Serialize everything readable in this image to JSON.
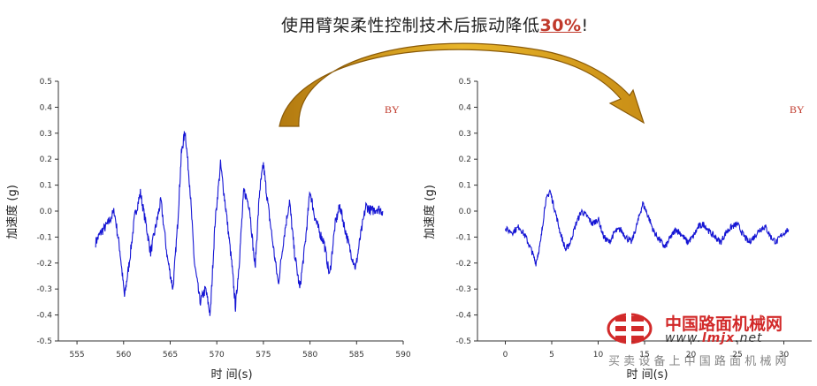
{
  "headline": {
    "text": "使用臂架柔性控制技术后振动降低",
    "percent": "30%",
    "tail": "!"
  },
  "colors": {
    "signal": "#1515d4",
    "arrow": "#d9a21c",
    "tag": "#c0392b"
  },
  "chart_data": [
    {
      "type": "line",
      "title": "",
      "tag": "BY",
      "xlabel": "时 间(s)",
      "ylabel": "加速度 (g)",
      "xlim": [
        553,
        590
      ],
      "ylim": [
        -0.5,
        0.5
      ],
      "xticks": [
        555,
        560,
        565,
        570,
        575,
        580,
        585,
        590
      ],
      "yticks": [
        -0.5,
        -0.4,
        -0.3,
        -0.2,
        -0.1,
        0.0,
        0.1,
        0.2,
        0.3,
        0.4,
        0.5
      ],
      "ytick_labels": [
        "-0.5",
        "-0.4",
        "-0.3",
        "-0.2",
        "-0.1",
        "0.0",
        "0.1",
        "0.2",
        "0.3",
        "0.4",
        "0.5"
      ],
      "series": [
        {
          "x": [
            557.0,
            557.6,
            558.3,
            559.0,
            559.6,
            560.1,
            560.6,
            561.2,
            561.8,
            562.4,
            562.9,
            563.5,
            564.0,
            564.7,
            565.3,
            565.8,
            566.2,
            566.6,
            567.1,
            567.6,
            568.2,
            568.8,
            569.3,
            569.8,
            570.4,
            571.0,
            571.6,
            572.0,
            572.4,
            572.9,
            573.5,
            574.1,
            574.6,
            575.0,
            575.4,
            576.0,
            576.6,
            577.2,
            577.8,
            578.3,
            578.9,
            579.5,
            580.0,
            580.5,
            581.0,
            581.5,
            582.1,
            582.7,
            583.2,
            583.7,
            584.3,
            584.9,
            585.4,
            586.0,
            586.6,
            587.2,
            587.8
          ],
          "y": [
            -0.12,
            -0.08,
            -0.05,
            0.0,
            -0.15,
            -0.33,
            -0.2,
            -0.02,
            0.07,
            -0.05,
            -0.16,
            -0.05,
            0.04,
            -0.18,
            -0.3,
            -0.05,
            0.22,
            0.31,
            0.1,
            -0.2,
            -0.35,
            -0.3,
            -0.4,
            -0.05,
            0.18,
            0.0,
            -0.2,
            -0.37,
            -0.2,
            0.08,
            0.02,
            -0.22,
            0.08,
            0.18,
            0.05,
            -0.12,
            -0.28,
            -0.1,
            0.04,
            -0.15,
            -0.3,
            -0.12,
            0.08,
            -0.02,
            -0.08,
            -0.12,
            -0.25,
            -0.05,
            0.02,
            -0.06,
            -0.15,
            -0.22,
            -0.1,
            0.02,
            0.0,
            0.01,
            0.0
          ]
        }
      ]
    },
    {
      "type": "line",
      "title": "",
      "tag": "BY",
      "xlabel": "时 间(s)",
      "ylabel": "加速度 (g)",
      "xlim": [
        -3,
        33
      ],
      "ylim": [
        -0.5,
        0.5
      ],
      "xticks": [
        0,
        5,
        10,
        15,
        20,
        25,
        30
      ],
      "yticks": [
        -0.5,
        -0.4,
        -0.3,
        -0.2,
        -0.1,
        0.0,
        0.1,
        0.2,
        0.3,
        0.4,
        0.5
      ],
      "ytick_labels": [
        "-0.5",
        "-0.4",
        "-0.3",
        "-0.2",
        "-0.1",
        "0.0",
        "0.1",
        "0.2",
        "0.3",
        "0.4",
        "0.5"
      ],
      "series": [
        {
          "x": [
            0.0,
            0.8,
            1.5,
            2.2,
            2.8,
            3.3,
            3.8,
            4.3,
            4.8,
            5.3,
            5.9,
            6.5,
            7.0,
            7.6,
            8.2,
            8.8,
            9.4,
            10.0,
            10.6,
            11.2,
            11.8,
            12.4,
            13.0,
            13.6,
            14.2,
            14.8,
            15.4,
            16.0,
            16.6,
            17.2,
            17.8,
            18.4,
            19.0,
            19.6,
            20.2,
            20.8,
            21.4,
            22.0,
            22.6,
            23.2,
            23.8,
            24.4,
            25.0,
            25.6,
            26.2,
            26.8,
            27.4,
            28.0,
            28.6,
            29.2,
            29.8,
            30.5
          ],
          "y": [
            -0.07,
            -0.08,
            -0.06,
            -0.1,
            -0.15,
            -0.2,
            -0.12,
            0.03,
            0.08,
            0.01,
            -0.08,
            -0.15,
            -0.12,
            -0.05,
            0.0,
            -0.02,
            -0.05,
            -0.03,
            -0.1,
            -0.12,
            -0.08,
            -0.07,
            -0.1,
            -0.12,
            -0.05,
            0.03,
            -0.02,
            -0.08,
            -0.11,
            -0.14,
            -0.1,
            -0.07,
            -0.09,
            -0.12,
            -0.1,
            -0.06,
            -0.05,
            -0.08,
            -0.1,
            -0.12,
            -0.08,
            -0.06,
            -0.05,
            -0.09,
            -0.12,
            -0.1,
            -0.07,
            -0.06,
            -0.1,
            -0.12,
            -0.09,
            -0.07
          ]
        }
      ]
    }
  ],
  "watermark": {
    "logo_icon": "cm-logo-icon",
    "cn": "中国路面机械网",
    "url_prefix": "www.",
    "url_mid": "lmjx",
    "url_suffix": ".net",
    "slogan": "买 卖 设 备 上 中 国 路 面 机 械 网"
  }
}
